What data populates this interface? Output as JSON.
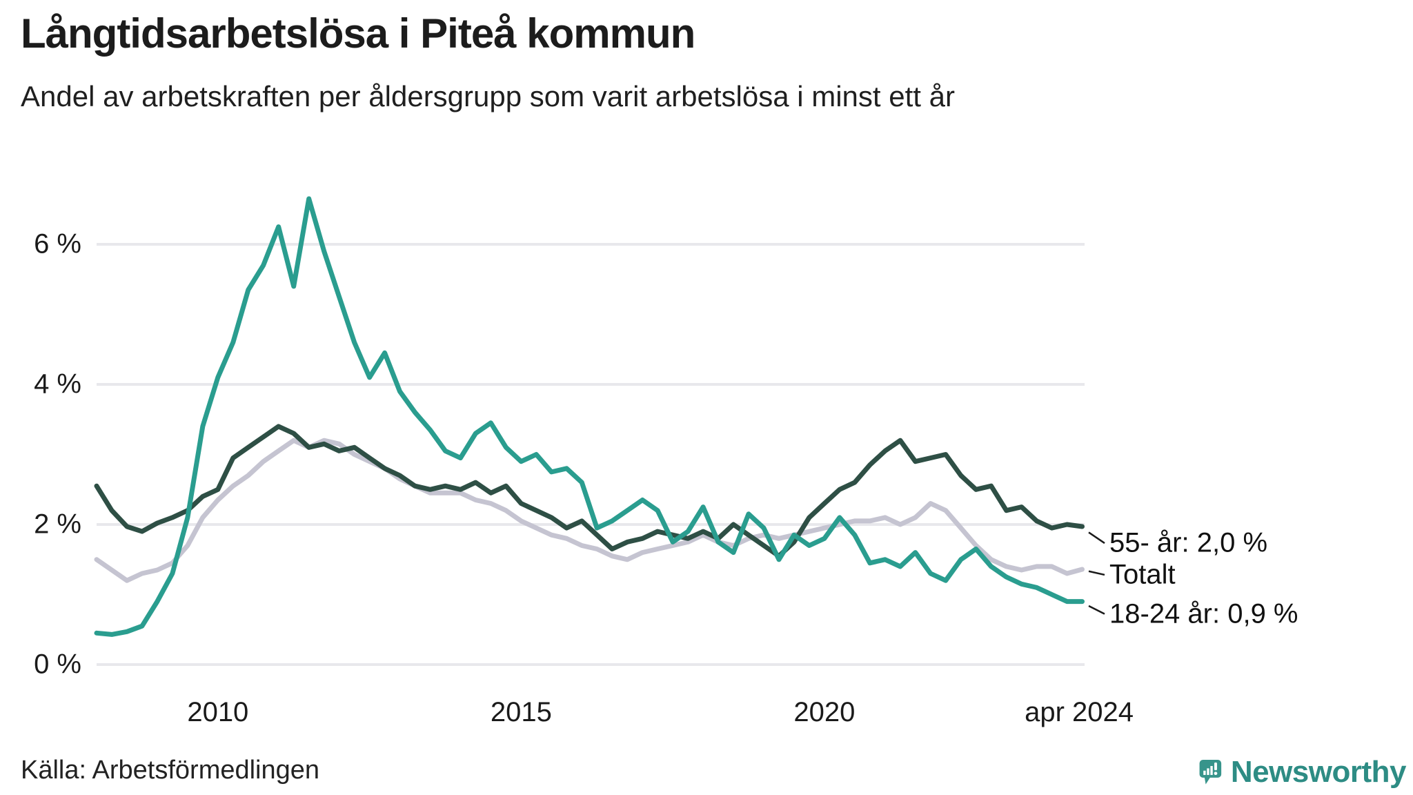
{
  "footer": {
    "source": "Källa: Arbetsförmedlingen",
    "brand": "Newsworthy"
  },
  "chart_data": {
    "type": "line",
    "title": "Långtidsarbetslösa i Piteå kommun",
    "subtitle": "Andel av arbetskraften per åldersgrupp som varit arbetslösa i minst ett år",
    "xlabel": "",
    "ylabel": "",
    "grid": "horizontal",
    "legend_position": "right-end-labels",
    "xlim": [
      2008.0,
      2024.29
    ],
    "ylim": [
      0,
      6.9
    ],
    "yticks": [
      {
        "value": 0,
        "label": "0 %"
      },
      {
        "value": 2,
        "label": "2 %"
      },
      {
        "value": 4,
        "label": "4 %"
      },
      {
        "value": 6,
        "label": "6 %"
      }
    ],
    "xticks": [
      {
        "value": 2010,
        "label": "2010"
      },
      {
        "value": 2015,
        "label": "2015"
      },
      {
        "value": 2020,
        "label": "2020"
      },
      {
        "value": 2024.2,
        "label": "apr 2024"
      }
    ],
    "x": [
      2008.0,
      2008.25,
      2008.5,
      2008.75,
      2009.0,
      2009.25,
      2009.5,
      2009.75,
      2010.0,
      2010.25,
      2010.5,
      2010.75,
      2011.0,
      2011.25,
      2011.5,
      2011.75,
      2012.0,
      2012.25,
      2012.5,
      2012.75,
      2013.0,
      2013.25,
      2013.5,
      2013.75,
      2014.0,
      2014.25,
      2014.5,
      2014.75,
      2015.0,
      2015.25,
      2015.5,
      2015.75,
      2016.0,
      2016.25,
      2016.5,
      2016.75,
      2017.0,
      2017.25,
      2017.5,
      2017.75,
      2018.0,
      2018.25,
      2018.5,
      2018.75,
      2019.0,
      2019.25,
      2019.5,
      2019.75,
      2020.0,
      2020.25,
      2020.5,
      2020.75,
      2021.0,
      2021.25,
      2021.5,
      2021.75,
      2022.0,
      2022.25,
      2022.5,
      2022.75,
      2023.0,
      2023.25,
      2023.5,
      2023.75,
      2024.0,
      2024.25
    ],
    "series": [
      {
        "name": "Totalt",
        "label": "Totalt",
        "color": "#c5c4d1",
        "end_value": null,
        "values": [
          1.5,
          1.35,
          1.2,
          1.3,
          1.35,
          1.45,
          1.7,
          2.1,
          2.35,
          2.55,
          2.7,
          2.9,
          3.05,
          3.2,
          3.1,
          3.2,
          3.15,
          3.0,
          2.9,
          2.8,
          2.65,
          2.55,
          2.45,
          2.45,
          2.45,
          2.35,
          2.3,
          2.2,
          2.05,
          1.95,
          1.85,
          1.8,
          1.7,
          1.65,
          1.55,
          1.5,
          1.6,
          1.65,
          1.7,
          1.75,
          1.85,
          1.75,
          1.7,
          1.8,
          1.85,
          1.8,
          1.85,
          1.9,
          1.95,
          2.0,
          2.05,
          2.05,
          2.1,
          2.0,
          2.1,
          2.3,
          2.2,
          1.95,
          1.7,
          1.5,
          1.4,
          1.35,
          1.4,
          1.4,
          1.3,
          1.36
        ]
      },
      {
        "name": "55- år",
        "label": "55- år: 2,0 %",
        "color": "#2e4f45",
        "end_value": 2.0,
        "values": [
          2.55,
          2.2,
          1.97,
          1.9,
          2.02,
          2.1,
          2.2,
          2.4,
          2.5,
          2.95,
          3.1,
          3.25,
          3.4,
          3.3,
          3.1,
          3.15,
          3.05,
          3.1,
          2.95,
          2.8,
          2.7,
          2.55,
          2.5,
          2.55,
          2.5,
          2.6,
          2.45,
          2.55,
          2.3,
          2.2,
          2.1,
          1.95,
          2.05,
          1.85,
          1.65,
          1.75,
          1.8,
          1.9,
          1.85,
          1.8,
          1.9,
          1.8,
          2.0,
          1.85,
          1.7,
          1.55,
          1.75,
          2.1,
          2.3,
          2.5,
          2.6,
          2.85,
          3.05,
          3.2,
          2.9,
          2.95,
          3.0,
          2.7,
          2.5,
          2.55,
          2.2,
          2.25,
          2.05,
          1.95,
          2.0,
          1.97
        ]
      },
      {
        "name": "18-24 år",
        "label": "18-24 år: 0,9 %",
        "color": "#2a9d8f",
        "end_value": 0.9,
        "values": [
          0.45,
          0.43,
          0.47,
          0.55,
          0.9,
          1.3,
          2.1,
          3.4,
          4.1,
          4.6,
          5.35,
          5.7,
          6.25,
          5.4,
          6.65,
          5.9,
          5.25,
          4.6,
          4.1,
          4.45,
          3.9,
          3.6,
          3.35,
          3.05,
          2.95,
          3.3,
          3.45,
          3.1,
          2.9,
          3.0,
          2.75,
          2.8,
          2.6,
          1.95,
          2.05,
          2.2,
          2.35,
          2.2,
          1.75,
          1.9,
          2.25,
          1.75,
          1.6,
          2.15,
          1.95,
          1.5,
          1.85,
          1.7,
          1.8,
          2.1,
          1.85,
          1.45,
          1.5,
          1.4,
          1.6,
          1.3,
          1.2,
          1.5,
          1.65,
          1.4,
          1.25,
          1.15,
          1.1,
          1.0,
          0.9,
          0.9
        ]
      }
    ],
    "colors": {
      "grid": "#e8e8ec",
      "text": "#1a1a1a",
      "connector": "#1a1a1a",
      "logo": "#37948b",
      "logo_text": "#2d8c84"
    }
  }
}
